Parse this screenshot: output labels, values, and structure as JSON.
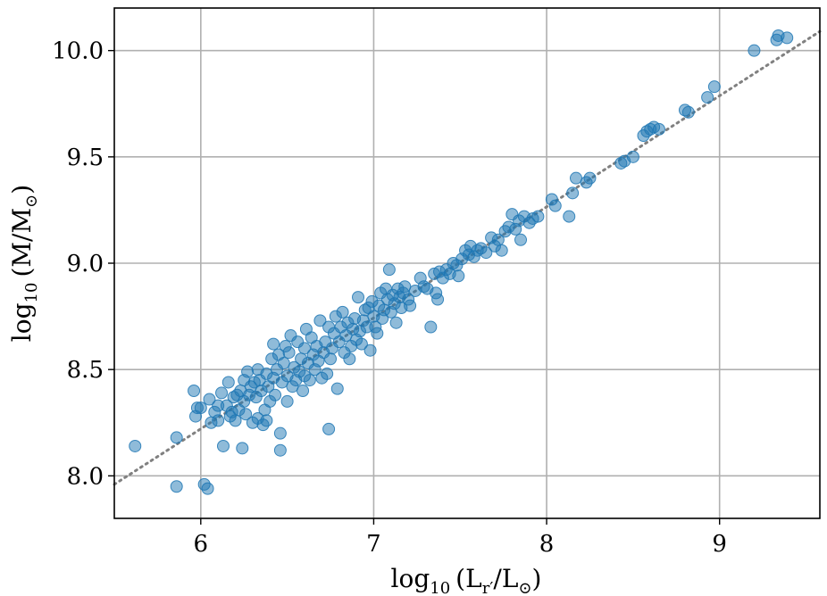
{
  "chart_data": {
    "type": "scatter",
    "xlabel_parts": {
      "main": "log",
      "sub": "10",
      "rest": "(L",
      "sub2": "r′",
      "mid": "/L",
      "sub3": "⊙",
      "end": ")"
    },
    "ylabel_parts": {
      "main": "log",
      "sub": "10",
      "rest": "(M/M",
      "sub2": "⊙",
      "end": ")"
    },
    "xlim": [
      5.5,
      9.58
    ],
    "ylim": [
      7.8,
      10.2
    ],
    "x_ticks": [
      6,
      7,
      8,
      9
    ],
    "x_tick_labels": [
      "6",
      "7",
      "8",
      "9"
    ],
    "y_ticks": [
      8.0,
      8.5,
      9.0,
      9.5,
      10.0
    ],
    "y_tick_labels": [
      "8.0",
      "8.5",
      "9.0",
      "9.5",
      "10.0"
    ],
    "grid": true,
    "fit_line": {
      "style": "dotted",
      "color": "#808080",
      "x": [
        5.5,
        9.58
      ],
      "y": [
        7.96,
        10.09
      ]
    },
    "point_color": "#1f77b4",
    "points": [
      [
        5.62,
        8.14
      ],
      [
        5.86,
        8.18
      ],
      [
        5.86,
        7.95
      ],
      [
        5.96,
        8.4
      ],
      [
        5.97,
        8.28
      ],
      [
        5.98,
        8.32
      ],
      [
        6.0,
        8.32
      ],
      [
        6.02,
        7.96
      ],
      [
        6.04,
        7.94
      ],
      [
        6.05,
        8.36
      ],
      [
        6.06,
        8.25
      ],
      [
        6.08,
        8.3
      ],
      [
        6.1,
        8.33
      ],
      [
        6.1,
        8.26
      ],
      [
        6.12,
        8.39
      ],
      [
        6.13,
        8.14
      ],
      [
        6.15,
        8.33
      ],
      [
        6.16,
        8.44
      ],
      [
        6.17,
        8.28
      ],
      [
        6.18,
        8.3
      ],
      [
        6.19,
        8.37
      ],
      [
        6.2,
        8.26
      ],
      [
        6.21,
        8.38
      ],
      [
        6.22,
        8.31
      ],
      [
        6.23,
        8.4
      ],
      [
        6.24,
        8.13
      ],
      [
        6.25,
        8.45
      ],
      [
        6.25,
        8.35
      ],
      [
        6.26,
        8.29
      ],
      [
        6.27,
        8.49
      ],
      [
        6.28,
        8.38
      ],
      [
        6.29,
        8.42
      ],
      [
        6.3,
        8.25
      ],
      [
        6.31,
        8.44
      ],
      [
        6.32,
        8.37
      ],
      [
        6.33,
        8.5
      ],
      [
        6.33,
        8.27
      ],
      [
        6.34,
        8.45
      ],
      [
        6.35,
        8.4
      ],
      [
        6.36,
        8.24
      ],
      [
        6.37,
        8.31
      ],
      [
        6.38,
        8.26
      ],
      [
        6.38,
        8.48
      ],
      [
        6.39,
        8.42
      ],
      [
        6.4,
        8.35
      ],
      [
        6.41,
        8.55
      ],
      [
        6.42,
        8.46
      ],
      [
        6.42,
        8.62
      ],
      [
        6.43,
        8.38
      ],
      [
        6.44,
        8.5
      ],
      [
        6.45,
        8.57
      ],
      [
        6.46,
        8.2
      ],
      [
        6.46,
        8.12
      ],
      [
        6.47,
        8.44
      ],
      [
        6.48,
        8.53
      ],
      [
        6.49,
        8.61
      ],
      [
        6.5,
        8.47
      ],
      [
        6.5,
        8.35
      ],
      [
        6.51,
        8.58
      ],
      [
        6.52,
        8.66
      ],
      [
        6.53,
        8.42
      ],
      [
        6.54,
        8.51
      ],
      [
        6.55,
        8.45
      ],
      [
        6.56,
        8.63
      ],
      [
        6.57,
        8.49
      ],
      [
        6.58,
        8.55
      ],
      [
        6.59,
        8.4
      ],
      [
        6.6,
        8.6
      ],
      [
        6.6,
        8.47
      ],
      [
        6.61,
        8.69
      ],
      [
        6.62,
        8.53
      ],
      [
        6.63,
        8.45
      ],
      [
        6.64,
        8.65
      ],
      [
        6.65,
        8.57
      ],
      [
        6.66,
        8.5
      ],
      [
        6.67,
        8.61
      ],
      [
        6.68,
        8.54
      ],
      [
        6.69,
        8.73
      ],
      [
        6.7,
        8.46
      ],
      [
        6.71,
        8.58
      ],
      [
        6.72,
        8.63
      ],
      [
        6.73,
        8.48
      ],
      [
        6.74,
        8.22
      ],
      [
        6.74,
        8.7
      ],
      [
        6.75,
        8.55
      ],
      [
        6.76,
        8.6
      ],
      [
        6.77,
        8.67
      ],
      [
        6.78,
        8.75
      ],
      [
        6.79,
        8.41
      ],
      [
        6.8,
        8.63
      ],
      [
        6.81,
        8.7
      ],
      [
        6.82,
        8.77
      ],
      [
        6.83,
        8.58
      ],
      [
        6.84,
        8.66
      ],
      [
        6.85,
        8.72
      ],
      [
        6.86,
        8.55
      ],
      [
        6.87,
        8.61
      ],
      [
        6.88,
        8.69
      ],
      [
        6.89,
        8.74
      ],
      [
        6.9,
        8.64
      ],
      [
        6.91,
        8.84
      ],
      [
        6.92,
        8.68
      ],
      [
        6.93,
        8.62
      ],
      [
        6.94,
        8.73
      ],
      [
        6.95,
        8.78
      ],
      [
        6.96,
        8.7
      ],
      [
        6.97,
        8.79
      ],
      [
        6.98,
        8.59
      ],
      [
        6.99,
        8.82
      ],
      [
        7.0,
        8.75
      ],
      [
        7.01,
        8.7
      ],
      [
        7.02,
        8.67
      ],
      [
        7.03,
        8.8
      ],
      [
        7.04,
        8.86
      ],
      [
        7.05,
        8.74
      ],
      [
        7.06,
        8.78
      ],
      [
        7.07,
        8.88
      ],
      [
        7.08,
        8.83
      ],
      [
        7.09,
        8.97
      ],
      [
        7.1,
        8.77
      ],
      [
        7.11,
        8.85
      ],
      [
        7.12,
        8.81
      ],
      [
        7.13,
        8.72
      ],
      [
        7.14,
        8.88
      ],
      [
        7.15,
        8.84
      ],
      [
        7.16,
        8.79
      ],
      [
        7.17,
        8.86
      ],
      [
        7.18,
        8.89
      ],
      [
        7.2,
        8.83
      ],
      [
        7.21,
        8.8
      ],
      [
        7.24,
        8.87
      ],
      [
        7.27,
        8.93
      ],
      [
        7.29,
        8.89
      ],
      [
        7.31,
        8.88
      ],
      [
        7.33,
        8.7
      ],
      [
        7.35,
        8.95
      ],
      [
        7.36,
        8.86
      ],
      [
        7.37,
        8.83
      ],
      [
        7.38,
        8.96
      ],
      [
        7.4,
        8.93
      ],
      [
        7.42,
        8.97
      ],
      [
        7.44,
        8.95
      ],
      [
        7.46,
        9.0
      ],
      [
        7.48,
        8.99
      ],
      [
        7.49,
        8.94
      ],
      [
        7.51,
        9.02
      ],
      [
        7.53,
        9.06
      ],
      [
        7.55,
        9.04
      ],
      [
        7.56,
        9.08
      ],
      [
        7.58,
        9.03
      ],
      [
        7.6,
        9.06
      ],
      [
        7.62,
        9.07
      ],
      [
        7.65,
        9.05
      ],
      [
        7.68,
        9.12
      ],
      [
        7.7,
        9.08
      ],
      [
        7.72,
        9.11
      ],
      [
        7.74,
        9.06
      ],
      [
        7.76,
        9.15
      ],
      [
        7.78,
        9.17
      ],
      [
        7.8,
        9.23
      ],
      [
        7.82,
        9.16
      ],
      [
        7.84,
        9.2
      ],
      [
        7.85,
        9.11
      ],
      [
        7.87,
        9.22
      ],
      [
        7.9,
        9.19
      ],
      [
        7.92,
        9.21
      ],
      [
        7.95,
        9.22
      ],
      [
        8.03,
        9.3
      ],
      [
        8.05,
        9.27
      ],
      [
        8.13,
        9.22
      ],
      [
        8.15,
        9.33
      ],
      [
        8.17,
        9.4
      ],
      [
        8.23,
        9.38
      ],
      [
        8.25,
        9.4
      ],
      [
        8.43,
        9.47
      ],
      [
        8.45,
        9.48
      ],
      [
        8.5,
        9.5
      ],
      [
        8.56,
        9.6
      ],
      [
        8.58,
        9.62
      ],
      [
        8.6,
        9.63
      ],
      [
        8.62,
        9.64
      ],
      [
        8.65,
        9.63
      ],
      [
        8.8,
        9.72
      ],
      [
        8.82,
        9.71
      ],
      [
        8.93,
        9.78
      ],
      [
        8.97,
        9.83
      ],
      [
        9.2,
        10.0
      ],
      [
        9.33,
        10.05
      ],
      [
        9.34,
        10.07
      ],
      [
        9.39,
        10.06
      ]
    ]
  }
}
